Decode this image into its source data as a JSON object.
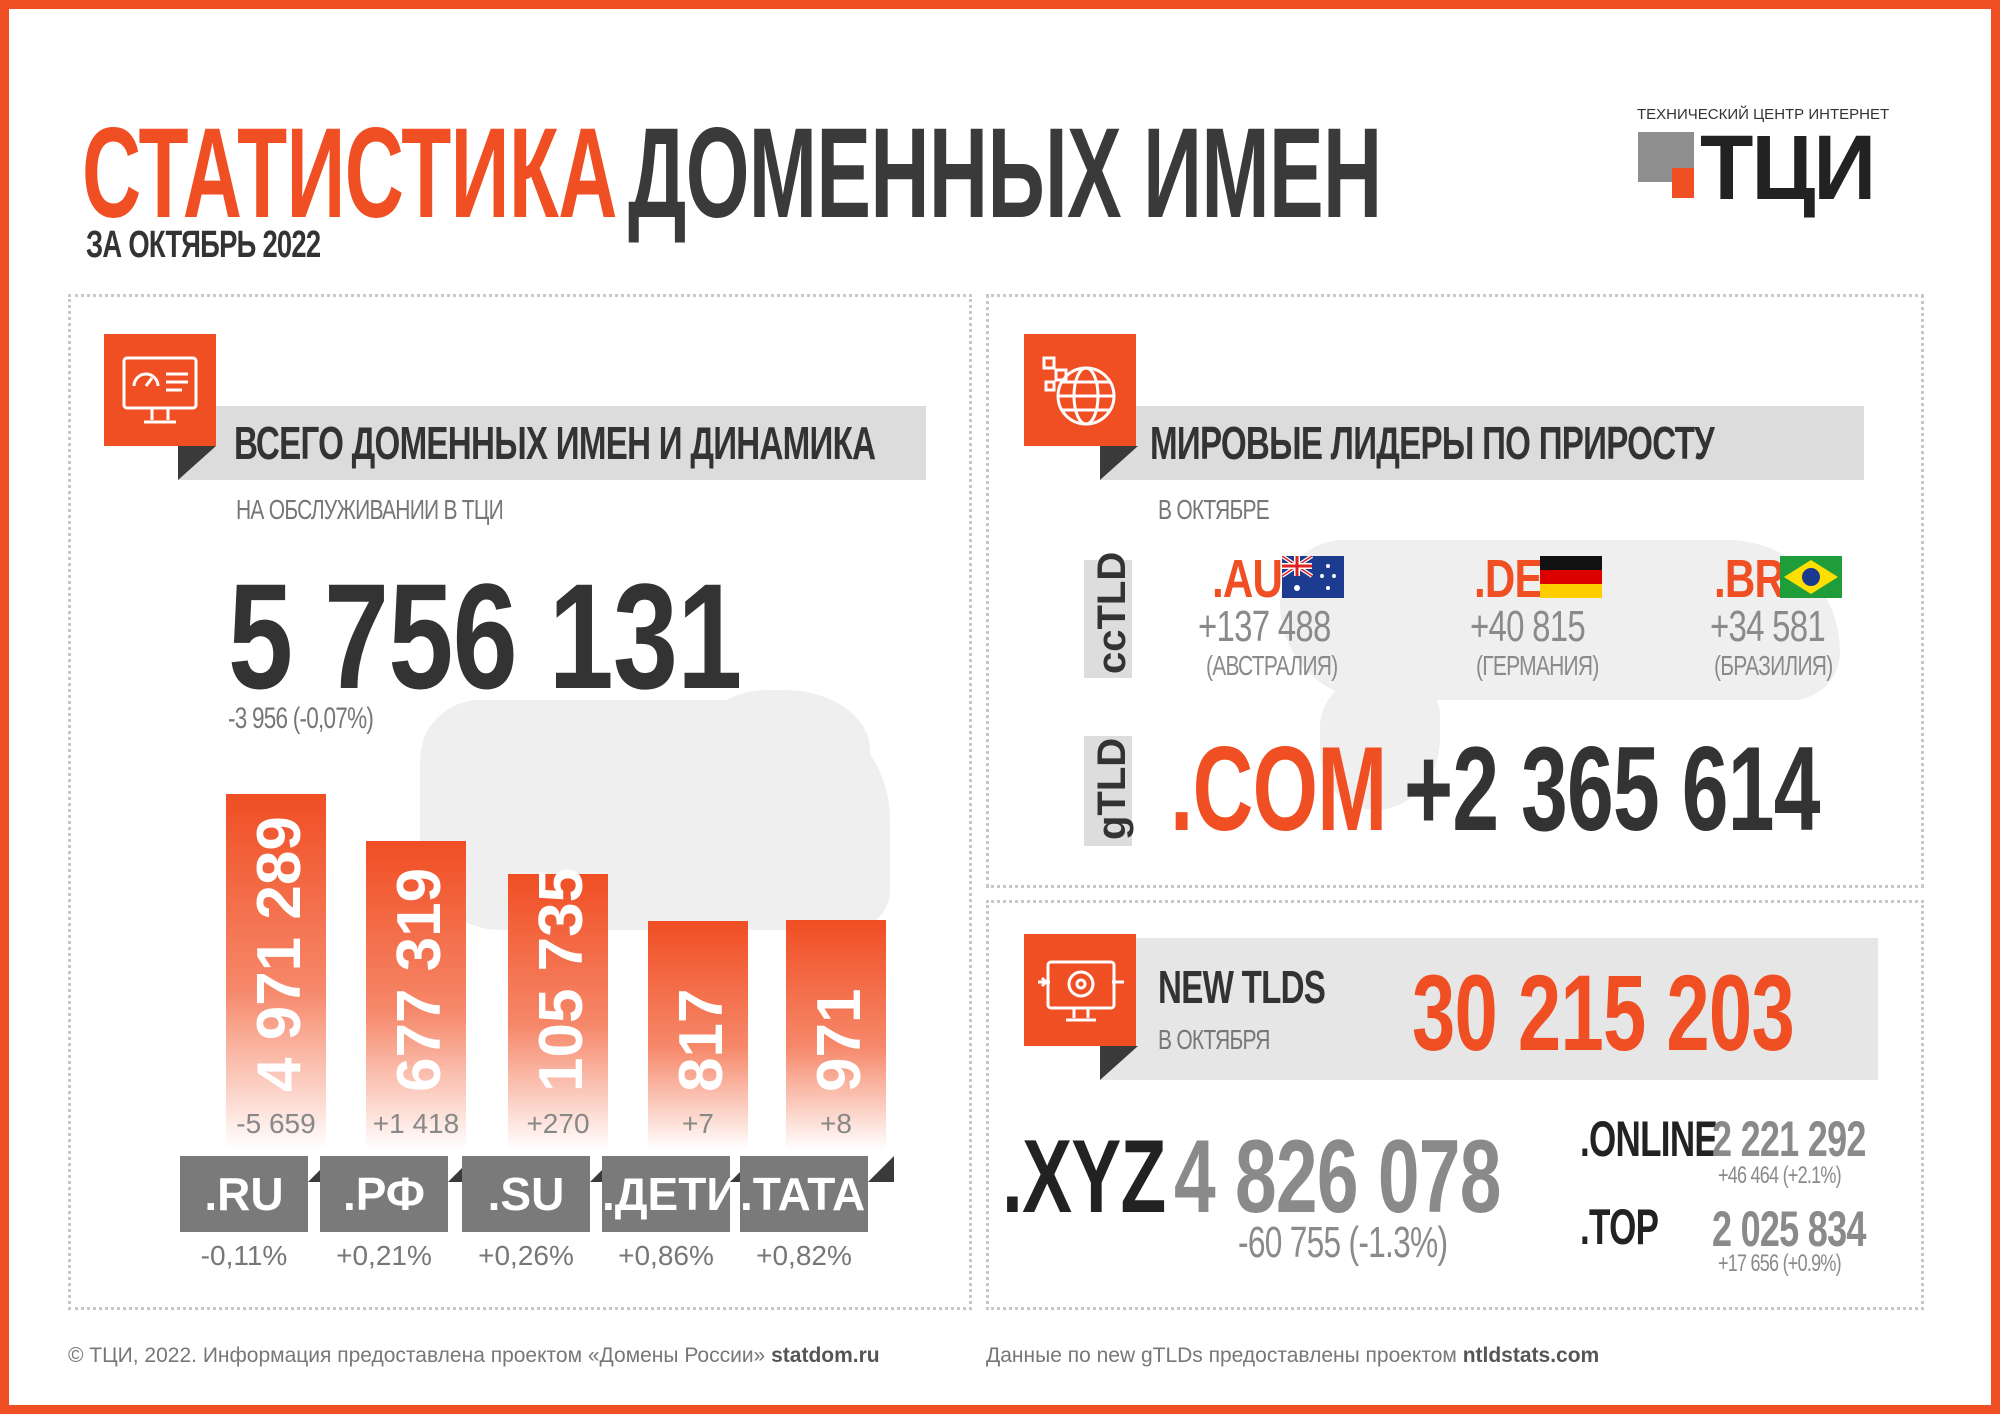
{
  "header": {
    "title_part1": "СТАТИСТИКА",
    "title_part2": "ДОМЕННЫХ ИМЕН",
    "period": "ЗА ОКТЯБРЬ 2022",
    "logo_caption": "ТЕХНИЧЕСКИЙ ЦЕНТР ИНТЕРНЕТ",
    "logo_text": "ТЦИ"
  },
  "left_panel": {
    "heading": "ВСЕГО ДОМЕННЫХ ИМЕН И ДИНАМИКА",
    "subheading": "НА ОБСЛУЖИВАНИИ В ТЦИ",
    "total": "5 756 131",
    "total_change": "-3 956 (-0,07%)",
    "bars": [
      {
        "tld": ".RU",
        "value": 4971289,
        "value_label": "4 971 289",
        "delta": "-5 659",
        "pct": "-0,11%"
      },
      {
        "tld": ".РФ",
        "value": 677319,
        "value_label": "677 319",
        "delta": "+1 418",
        "pct": "+0,21%"
      },
      {
        "tld": ".SU",
        "value": 105735,
        "value_label": "105 735",
        "delta": "+270",
        "pct": "+0,26%"
      },
      {
        "tld": ".ДЕТИ",
        "value": 817,
        "value_label": "817",
        "delta": "+7",
        "pct": "+0,86%"
      },
      {
        "tld": ".TATAR",
        "value": 971,
        "value_label": "971",
        "delta": "+8",
        "pct": "+0,82%"
      }
    ]
  },
  "right_top_panel": {
    "heading": "МИРОВЫЕ ЛИДЕРЫ ПО ПРИРОСТУ",
    "subheading": "В ОКТЯБРЕ",
    "cctld_label": "ccTLD",
    "gtld_label": "gTLD",
    "leaders": [
      {
        "tld": ".AU",
        "gain": "+137 488",
        "country": "(АВСТРАЛИЯ)",
        "flag": "australia-flag-icon"
      },
      {
        "tld": ".DE",
        "gain": "+40 815",
        "country": "(ГЕРМАНИЯ)",
        "flag": "germany-flag-icon"
      },
      {
        "tld": ".BR",
        "gain": "+34 581",
        "country": "(БРАЗИЛИЯ)",
        "flag": "brazil-flag-icon"
      }
    ],
    "gtld_tld": ".COM",
    "gtld_gain": "+2 365 614"
  },
  "right_bottom_panel": {
    "heading": "NEW TLDS",
    "subheading": "В ОКТЯБРЯ",
    "total": "30 215 203",
    "xyz": {
      "tld": ".XYZ",
      "value": "4 826 078",
      "change": "-60 755  (-1.3%)"
    },
    "online": {
      "tld": ".ONLINE",
      "value": "2 221 292",
      "change": "+46 464  (+2.1%)"
    },
    "top": {
      "tld": ".TOP",
      "value": "2 025 834",
      "change": "+17 656  (+0.9%)"
    }
  },
  "footer": {
    "left_text": "© ТЦИ, 2022.  Информация предоставлена проектом «Домены России»",
    "left_link": "statdom.ru",
    "right_text": "Данные по new gTLDs предоставлены проектом",
    "right_link": "ntldstats.com"
  },
  "colors": {
    "accent": "#f04e23",
    "dark": "#3a3a3a",
    "gray": "#8a8a8a"
  }
}
